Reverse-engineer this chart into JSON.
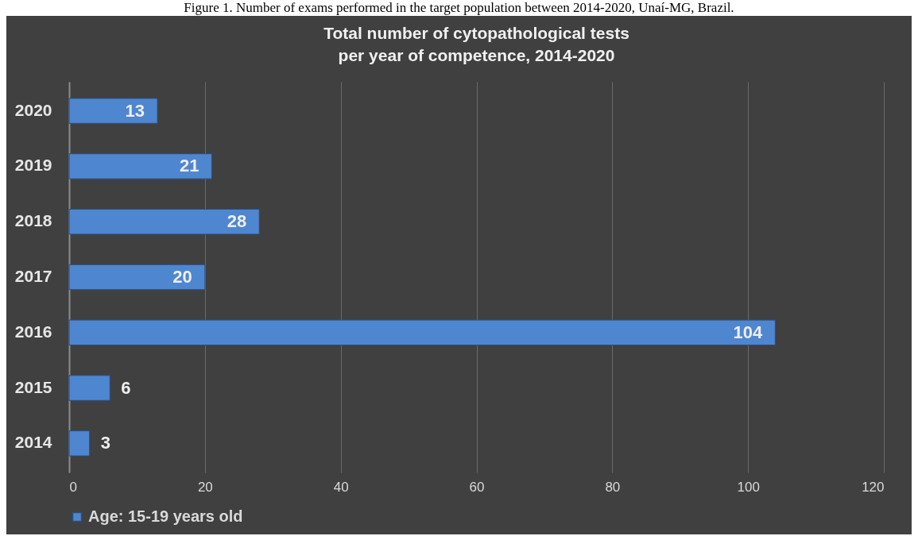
{
  "chart_data": {
    "type": "bar",
    "orientation": "horizontal",
    "title": "Total number of cytopathological tests per year of competence, 2014-2020",
    "annotations": [
      "Figure 1. Number of exams performed in the target population between 2014-2020, Unaí-MG, Brazil."
    ],
    "categories": [
      "2020",
      "2019",
      "2018",
      "2017",
      "2016",
      "2015",
      "2014"
    ],
    "series": [
      {
        "name": "Age: 15-19 years old",
        "color": "#4f86d0",
        "values": [
          13,
          21,
          28,
          20,
          104,
          6,
          3
        ]
      }
    ],
    "xlim": [
      0,
      120
    ],
    "xticks": [
      0,
      20,
      40,
      60,
      80,
      100,
      120
    ],
    "grid": "x",
    "legend": "bottom",
    "data_labels": true
  }
}
